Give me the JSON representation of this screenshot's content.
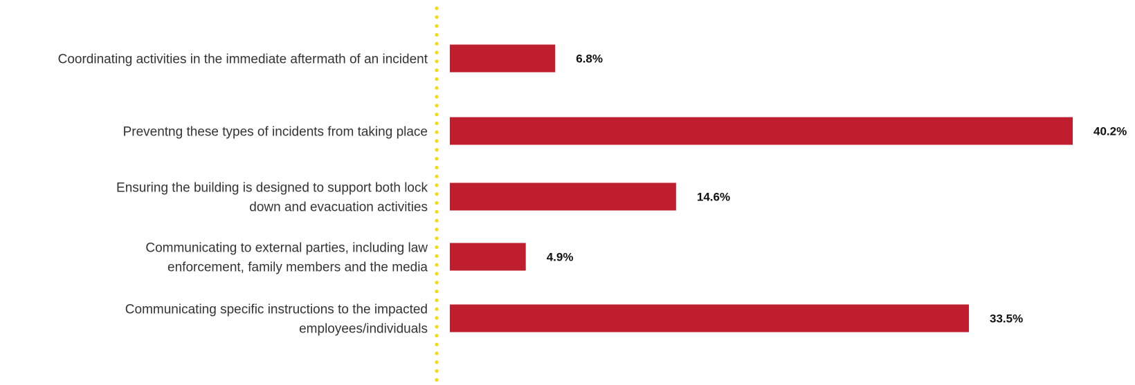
{
  "chart_data": {
    "type": "bar",
    "orientation": "horizontal",
    "categories": [
      [
        "Coordinating  activities in the immediate aftermath of an incident"
      ],
      [
        "Preventng these types of incidents from taking place"
      ],
      [
        "Ensuring the building is designed to support both lock",
        "down and evacuation activities"
      ],
      [
        "Communicating to external parties, including law",
        "enforcement, family members and the media"
      ],
      [
        "Communicating specific instructions to the impacted",
        "employees/individuals"
      ]
    ],
    "values": [
      6.8,
      40.2,
      14.6,
      4.9,
      33.5
    ],
    "value_labels": [
      "6.8%",
      "40.2%",
      "14.6%",
      "4.9%",
      "33.5%"
    ],
    "xlim": [
      0,
      40.2
    ],
    "grid": false,
    "legend": "none",
    "colors": {
      "bar": "#be1e2d",
      "axis_dots": "#f5d90a",
      "category_text": "#333333",
      "value_text": "#111111"
    }
  }
}
